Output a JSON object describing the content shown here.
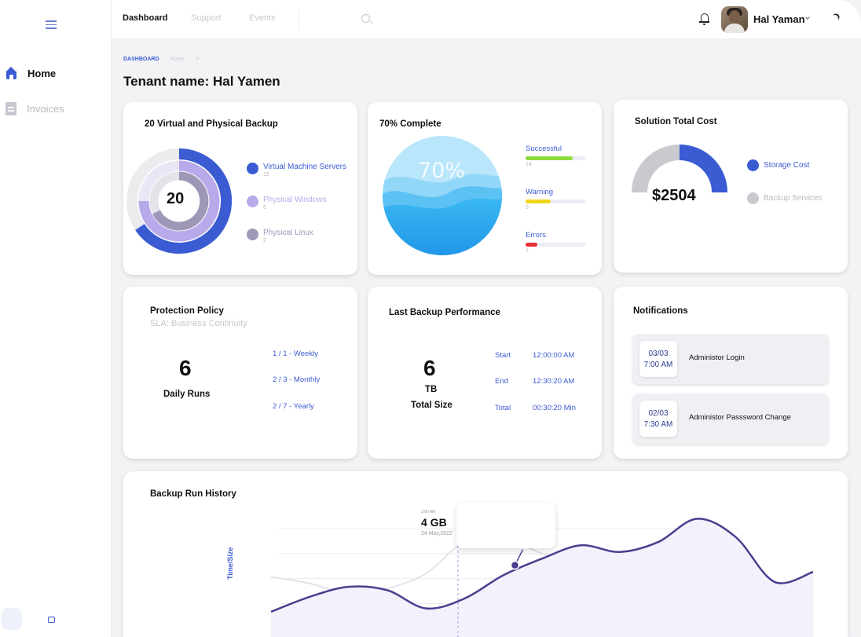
{
  "sidebar": {
    "items": [
      {
        "label": "Home",
        "icon": "home-icon",
        "active": true
      },
      {
        "label": "Invoices",
        "icon": "document-icon",
        "active": false
      }
    ]
  },
  "topbar": {
    "tabs": [
      "Dashboard",
      "Support",
      "Events"
    ],
    "active_tab": "Dashboard",
    "user_name": "Hal Yaman"
  },
  "breadcrumb": [
    "DASHBOARD",
    "Home",
    ">"
  ],
  "page_title": "Tenant name: Hal Yamen",
  "backup_card": {
    "title": "20 Virtual and Physical Backup",
    "total": "20",
    "legend": [
      {
        "name": "Virtual Machine Servers",
        "count": "12",
        "color": "#3a5bd1"
      },
      {
        "name": "Physical Windows",
        "count": "6",
        "color": "#b8a9ea"
      },
      {
        "name": "Physical Linux",
        "count": "2",
        "color": "#9e97b7"
      }
    ]
  },
  "complete_card": {
    "title": "70% Complete",
    "percent_label": "70%",
    "percent": 70,
    "statuses": [
      {
        "name": "Successful",
        "count": "14",
        "fill": 0.78,
        "color": "#8cdc3c"
      },
      {
        "name": "Warning",
        "count": "5",
        "fill": 0.42,
        "color": "#f2d51b"
      },
      {
        "name": "Errors",
        "count": "1",
        "fill": 0.2,
        "color": "#e82c35"
      }
    ]
  },
  "cost_card": {
    "title": "Solution Total Cost",
    "amount": "$2504",
    "legend": [
      {
        "name": "Storage Cost",
        "color": "#3a5bd1"
      },
      {
        "name": "Backup Services",
        "color": "#c9c9cf"
      }
    ]
  },
  "policy_card": {
    "title": "Protection Policy",
    "subtitle": "SLA: Business Continuity",
    "value": "6",
    "value_label": "Daily Runs",
    "schedules": [
      "1 / 1 - Weekly",
      "2 / 3 - Monthly",
      "2 / 7 - Yearly"
    ]
  },
  "performance_card": {
    "title": "Last Backup Performance",
    "value": "6",
    "unit": "TB",
    "value_label": "Total Size",
    "rows": [
      {
        "label": "Start",
        "value": "12:00:00 AM"
      },
      {
        "label": "End",
        "value": "12:30:20 AM"
      },
      {
        "label": "Total",
        "value": "00:30:20 Min"
      }
    ]
  },
  "notifications_card": {
    "title": "Notifications",
    "items": [
      {
        "date": "03/03",
        "time": "7:00 AM",
        "text": "Administor Login"
      },
      {
        "date": "02/03",
        "time": "7:30 AM",
        "text": "Administor Passsword Change"
      }
    ]
  },
  "history_card": {
    "title": "Backup Run History",
    "tooltip": {
      "time": "2:00 AM",
      "value": "4 GB",
      "date": "24 May,2022"
    }
  },
  "chart_data": {
    "type": "line",
    "title": "Backup Run History",
    "ylabel": "Time/Size",
    "xlabel": "",
    "x": [
      0,
      1,
      2,
      3,
      4,
      5,
      6,
      7,
      8,
      9,
      10,
      11,
      12,
      13,
      14
    ],
    "series": [
      {
        "values": [
          1.0,
          1.9,
          2.5,
          2.3,
          1.2,
          1.8,
          3.2,
          4.2,
          5.0,
          4.6,
          5.2,
          6.6,
          5.5,
          2.8,
          3.4
        ],
        "color": "#4a3f8f"
      },
      {
        "values": [
          3.1,
          2.7,
          2.1,
          2.4,
          3.3,
          5.2,
          5.4,
          4.5,
          3.7,
          3.1,
          3.3,
          2.4,
          1.5,
          1.4,
          1.3
        ],
        "color": "#e4e4ea"
      }
    ],
    "highlight_point": {
      "x": 6.3,
      "y": 3.8
    },
    "grid": true,
    "ylim": [
      0,
      7
    ]
  }
}
